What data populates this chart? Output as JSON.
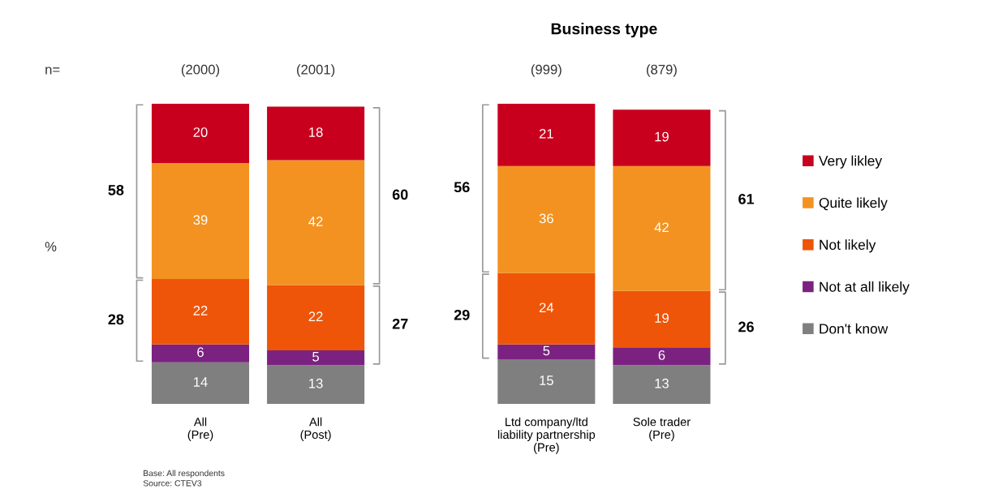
{
  "chart_data": {
    "type": "bar",
    "stacked": true,
    "title": "Business type",
    "categories": [
      "All\n(Pre)",
      "All\n(Post)",
      "Ltd company/ltd\nliability partnership\n(Pre)",
      "Sole trader\n(Pre)"
    ],
    "series": [
      {
        "name": "Don't know",
        "color": "#7f7f7f",
        "values": [
          14,
          13,
          15,
          13
        ]
      },
      {
        "name": "Not at all likely",
        "color": "#7b2281",
        "values": [
          6,
          5,
          5,
          6
        ]
      },
      {
        "name": "Not likely",
        "color": "#ee5508",
        "values": [
          22,
          22,
          24,
          19
        ]
      },
      {
        "name": "Quite likely",
        "color": "#f39220",
        "values": [
          39,
          42,
          36,
          42
        ]
      },
      {
        "name": "Very likley",
        "color": "#c8001e",
        "values": [
          20,
          18,
          21,
          19
        ]
      }
    ],
    "data_labels": true,
    "legend": "right",
    "grid": false,
    "annotations": [
      "n=",
      "%",
      "Base: All respondents",
      "Source: CTEV3",
      "(2000)",
      "(2001)",
      "(999)",
      "(879)",
      "58",
      "28",
      "60",
      "27",
      "56",
      "29",
      "61",
      "26"
    ]
  }
}
